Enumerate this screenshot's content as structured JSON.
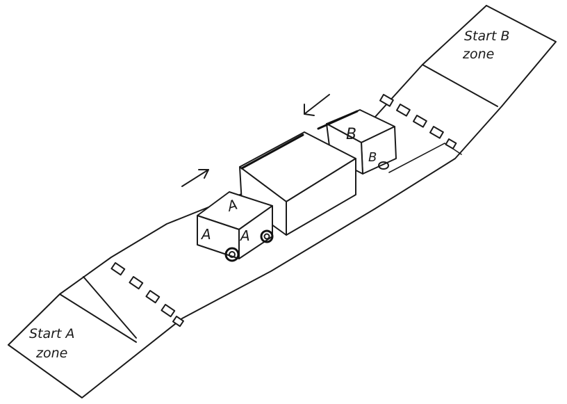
{
  "zones": {
    "start_a_line1": "Start A",
    "start_a_line2": "zone",
    "start_b_line1": "Start B",
    "start_b_line2": "zone"
  },
  "vehicle_a": {
    "label_top": "A",
    "label_side": "A",
    "label_front": "A"
  },
  "vehicle_b": {
    "label_top": "B",
    "label_side": "B"
  },
  "arrows": {
    "a_direction": "right-up",
    "b_direction": "left-down"
  },
  "colors": {
    "ink": "#1a1a1a",
    "paper": "#ffffff"
  }
}
